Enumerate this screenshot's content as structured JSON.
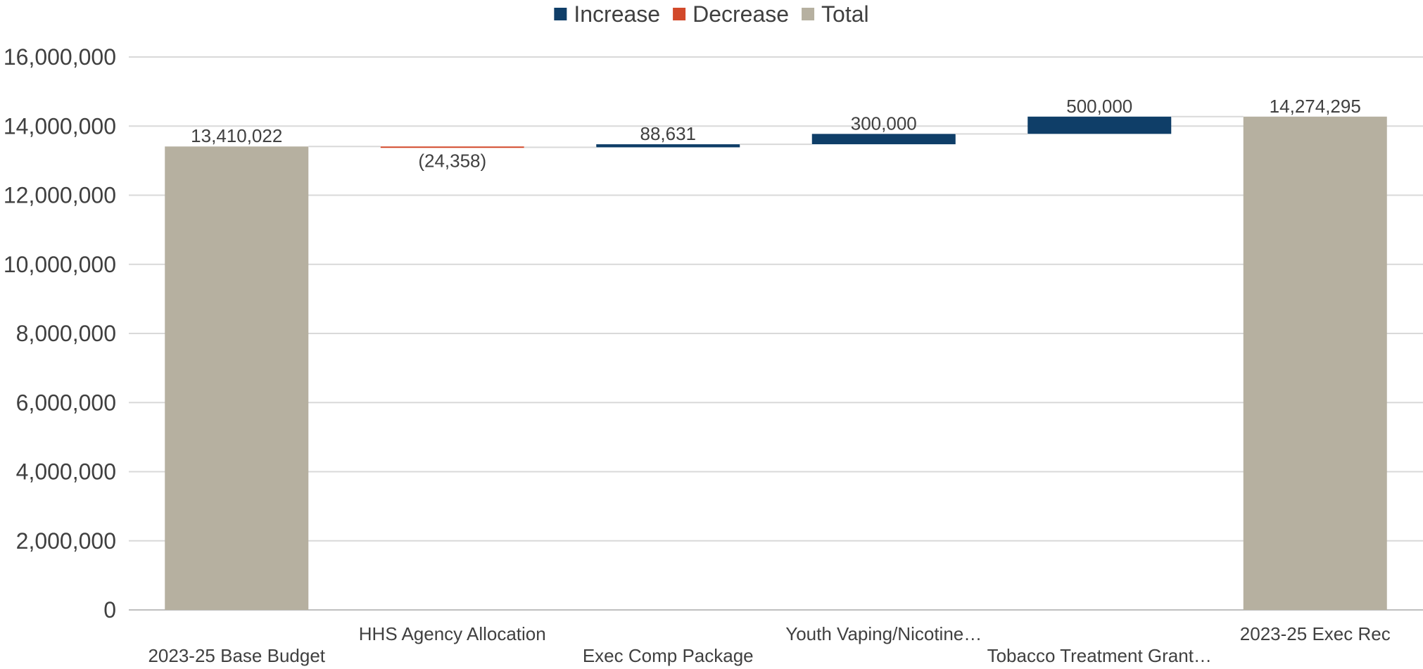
{
  "chart_data": {
    "type": "waterfall",
    "legend": {
      "position": "top",
      "entries": [
        {
          "key": "increase",
          "label": "Increase",
          "color": "#0f3e68"
        },
        {
          "key": "decrease",
          "label": "Decrease",
          "color": "#d2492a"
        },
        {
          "key": "total",
          "label": "Total",
          "color": "#b6b0a0"
        }
      ]
    },
    "ylim": [
      0,
      16000000
    ],
    "yticks": [
      0,
      2000000,
      4000000,
      6000000,
      8000000,
      10000000,
      12000000,
      14000000,
      16000000
    ],
    "ytick_labels": [
      "0",
      "2,000,000",
      "4,000,000",
      "6,000,000",
      "8,000,000",
      "10,000,000",
      "12,000,000",
      "14,000,000",
      "16,000,000"
    ],
    "grid": true,
    "categories": [
      "2023-25 Base Budget",
      "HHS Agency Allocation",
      "Exec Comp Package",
      "Youth Vaping/Nicotine…",
      "Tobacco Treatment Grant…",
      "2023-25 Exec Rec"
    ],
    "steps": [
      {
        "kind": "total",
        "value": 13410022,
        "label": "13,410,022"
      },
      {
        "kind": "decrease",
        "value": -24358,
        "label": "(24,358)"
      },
      {
        "kind": "increase",
        "value": 88631,
        "label": "88,631"
      },
      {
        "kind": "increase",
        "value": 300000,
        "label": "300,000"
      },
      {
        "kind": "increase",
        "value": 500000,
        "label": "500,000"
      },
      {
        "kind": "total",
        "value": 14274295,
        "label": "14,274,295"
      }
    ],
    "colors": {
      "gridline": "#d9d9d9",
      "connector": "#d9d9d9",
      "axis": "#bfbfbf"
    }
  }
}
